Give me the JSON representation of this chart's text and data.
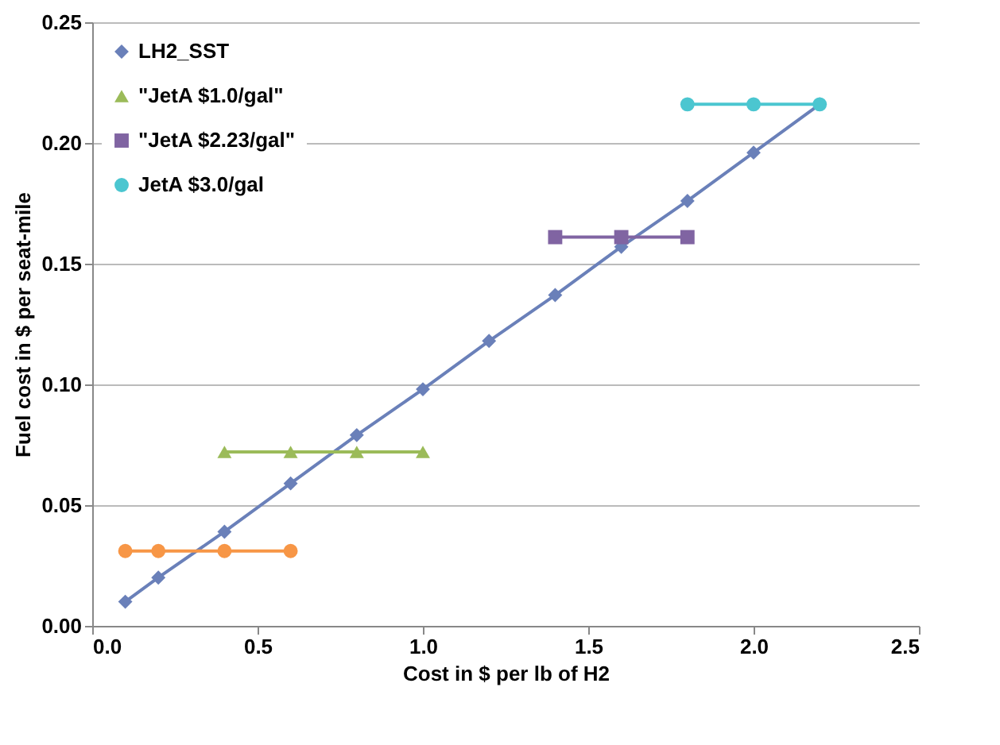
{
  "chart_data": {
    "type": "line",
    "xlabel": "Cost in $ per lb of H2",
    "ylabel": "Fuel cost in $ per seat-mile",
    "xlim": [
      0,
      2.5
    ],
    "xticks": [
      {
        "value": 0,
        "label": "0.0"
      },
      0.5,
      {
        "value": 1,
        "label": "1.0"
      },
      1.5,
      {
        "value": 2,
        "label": "2.0"
      },
      2.5
    ],
    "ylim": [
      0,
      0.25
    ],
    "yticks": [
      {
        "value": 0,
        "label": "0.00"
      },
      0.05,
      {
        "value": 0.1,
        "label": "0.10"
      },
      0.15,
      {
        "value": 0.2,
        "label": "0.20"
      },
      0.25
    ],
    "grid": "y",
    "legend": "top left",
    "series": [
      {
        "name": "LH2_SST",
        "color": "#6a80b9",
        "marker": "diamond",
        "x": [
          0.1,
          0.2,
          0.4,
          0.6,
          0.8,
          1.0,
          1.2,
          1.4,
          1.6,
          1.8,
          2.0,
          2.2
        ],
        "values": [
          0.01,
          0.02,
          0.039,
          0.059,
          0.079,
          0.098,
          0.118,
          0.137,
          0.157,
          0.176,
          0.196,
          0.216
        ]
      },
      {
        "name": "\"JetA $1.0/gal\"",
        "color": "#9bbb59",
        "marker": "triangle",
        "x": [
          0.4,
          0.6,
          0.8,
          1.0
        ],
        "values": [
          0.072,
          0.072,
          0.072,
          0.072
        ]
      },
      {
        "name": "\"JetA $2.23/gal\"",
        "color": "#8064a2",
        "marker": "square",
        "x": [
          1.4,
          1.6,
          1.8
        ],
        "values": [
          0.161,
          0.161,
          0.161
        ]
      },
      {
        "name": "JetA $3.0/gal",
        "color": "#4bc6d0",
        "marker": "circle",
        "x": [
          1.8,
          2.0,
          2.2
        ],
        "values": [
          0.216,
          0.216,
          0.216
        ]
      },
      {
        "color": "#f79646",
        "marker": "circle",
        "x": [
          0.1,
          0.2,
          0.4,
          0.6
        ],
        "values": [
          0.031,
          0.031,
          0.031,
          0.031
        ]
      }
    ]
  }
}
